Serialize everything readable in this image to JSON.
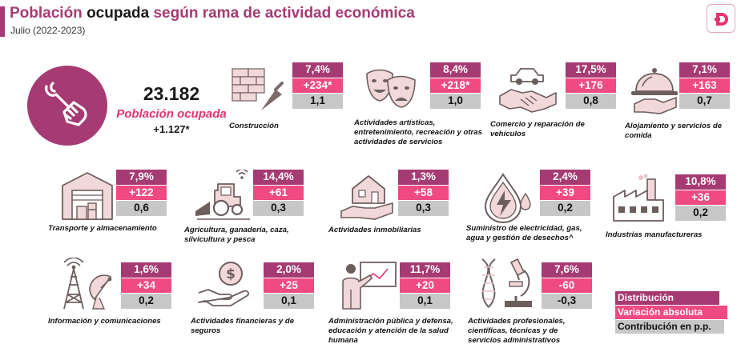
{
  "header": {
    "title_part1": "Población",
    "title_part2": " ocupada ",
    "title_part3": "según rama de actividad económica",
    "subtitle": "Julio (2022-2023)"
  },
  "colors": {
    "distribution": "#a63a73",
    "absolute": "#ef4a82",
    "contribution": "#c7c7c7",
    "highlight": "#e8336f"
  },
  "total": {
    "value": "23.182",
    "label": "Población ocupada",
    "change": "+1.127*"
  },
  "sectors": [
    {
      "icon": "brick-wall-trowel-icon",
      "label": "Construcción",
      "distribution": "7,4%",
      "absolute": "+234*",
      "contribution": "1,1"
    },
    {
      "icon": "theater-masks-icon",
      "label": "Actividades artísticas, entretenimiento, recreación y otras actividades de servicios",
      "distribution": "8,4%",
      "absolute": "+218*",
      "contribution": "1,0"
    },
    {
      "icon": "car-handshake-icon",
      "label": "Comercio y reparación de vehículos",
      "distribution": "17,5%",
      "absolute": "+176",
      "contribution": "0,8"
    },
    {
      "icon": "food-cloche-icon",
      "label": "Alojamiento y servicios de comida",
      "distribution": "7,1%",
      "absolute": "+163",
      "contribution": "0,7"
    },
    {
      "icon": "warehouse-icon",
      "label": "Transporte y almacenamiento",
      "distribution": "7,9%",
      "absolute": "+122",
      "contribution": "0,6"
    },
    {
      "icon": "tractor-icon",
      "label": "Agricultura, ganadería, caza, silvicultura y pesca",
      "distribution": "14,4%",
      "absolute": "+61",
      "contribution": "0,3"
    },
    {
      "icon": "house-hand-icon",
      "label": "Actividades inmobiliarias",
      "distribution": "1,3%",
      "absolute": "+58",
      "contribution": "0,3"
    },
    {
      "icon": "energy-water-drop-icon",
      "label": "Suministro de electricidad, gas, agua y gestión de desechos^",
      "distribution": "2,4%",
      "absolute": "+39",
      "contribution": "0,2"
    },
    {
      "icon": "factory-icon",
      "label": "Industrias manufactureras",
      "distribution": "10,8%",
      "absolute": "+36",
      "contribution": "0,2"
    },
    {
      "icon": "antenna-satellite-icon",
      "label": "Información y comunicaciones",
      "distribution": "1,6%",
      "absolute": "+34",
      "contribution": "0,2"
    },
    {
      "icon": "hand-coin-icon",
      "label": "Actividades financieras y de seguros",
      "distribution": "2,0%",
      "absolute": "+25",
      "contribution": "0,1"
    },
    {
      "icon": "presenter-board-icon",
      "label": "Administración pública y defensa, educación y atención de la salud humana",
      "distribution": "11,7%",
      "absolute": "+20",
      "contribution": "0,1"
    },
    {
      "icon": "dna-microscope-icon",
      "label": "Actividades profesionales, científicas, técnicas y de servicios administrativos",
      "distribution": "7,6%",
      "absolute": "-60",
      "contribution": "-0,3"
    }
  ],
  "legend": {
    "distribution": "Distribución",
    "absolute": "Variación absoluta",
    "contribution": "Contribución en p.p."
  }
}
